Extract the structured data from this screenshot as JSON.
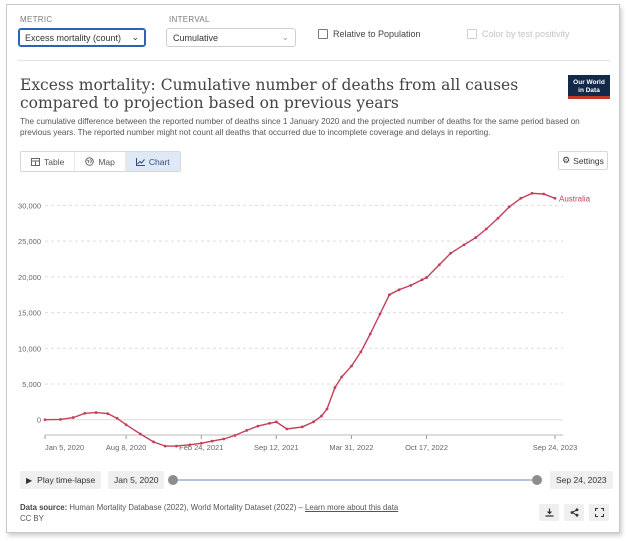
{
  "controls": {
    "metric": {
      "label": "METRIC",
      "value": "Excess mortality (count)"
    },
    "interval": {
      "label": "INTERVAL",
      "value": "Cumulative"
    },
    "relative_to_population": {
      "label": "Relative to Population",
      "checked": false
    },
    "color_by_test_positivity": {
      "label": "Color by test positivity",
      "checked": false,
      "disabled": true
    }
  },
  "header": {
    "title": "Excess mortality: Cumulative number of deaths from all causes compared to projection based on previous years",
    "subtitle": "The cumulative difference between the reported number of deaths since 1 January 2020 and the projected number of deaths for the same period based on previous years. The reported number might not count all deaths that occurred due to incomplete coverage and delays in reporting.",
    "logo_line1": "Our World",
    "logo_line2": "in Data",
    "logo_colors": {
      "background": "#12294a",
      "accent": "#c0392b"
    }
  },
  "tabs": [
    {
      "label": "Table",
      "icon": "table-icon",
      "active": false
    },
    {
      "label": "Map",
      "icon": "globe-icon",
      "active": false
    },
    {
      "label": "Chart",
      "icon": "line-chart-icon",
      "active": true
    }
  ],
  "settings_label": "Settings",
  "chart_data": {
    "type": "line",
    "title": "",
    "xlabel": "",
    "ylabel": "",
    "ylim": [
      -2000,
      33000
    ],
    "y_ticks": [
      "0",
      "5,000",
      "10,000",
      "15,000",
      "20,000",
      "25,000",
      "30,000"
    ],
    "y_tick_values": [
      0,
      5000,
      10000,
      15000,
      20000,
      25000,
      30000
    ],
    "x_tick_labels": [
      "Jan 5, 2020",
      "Aug 8, 2020",
      "Feb 24, 2021",
      "Sep 12, 2021",
      "Mar 31, 2022",
      "Oct 17, 2022",
      "Sep 24, 2023"
    ],
    "x_tick_values": [
      "2020-01-05",
      "2020-08-08",
      "2021-02-24",
      "2021-09-12",
      "2022-03-31",
      "2022-10-17",
      "2023-09-24"
    ],
    "grid": true,
    "color": "#c2405a",
    "series": [
      {
        "name": "Australia",
        "points": [
          [
            "2020-01-05",
            0
          ],
          [
            "2020-02-15",
            50
          ],
          [
            "2020-03-20",
            300
          ],
          [
            "2020-04-20",
            900
          ],
          [
            "2020-05-20",
            1000
          ],
          [
            "2020-06-20",
            850
          ],
          [
            "2020-07-15",
            200
          ],
          [
            "2020-08-08",
            -700
          ],
          [
            "2020-09-15",
            -2000
          ],
          [
            "2020-10-20",
            -3100
          ],
          [
            "2020-11-20",
            -3700
          ],
          [
            "2020-12-20",
            -3700
          ],
          [
            "2021-01-25",
            -3500
          ],
          [
            "2021-02-24",
            -3300
          ],
          [
            "2021-03-25",
            -3000
          ],
          [
            "2021-04-25",
            -2700
          ],
          [
            "2021-05-25",
            -2200
          ],
          [
            "2021-06-25",
            -1500
          ],
          [
            "2021-07-25",
            -900
          ],
          [
            "2021-08-25",
            -500
          ],
          [
            "2021-09-12",
            -300
          ],
          [
            "2021-10-10",
            -1300
          ],
          [
            "2021-11-20",
            -1000
          ],
          [
            "2021-12-20",
            -300
          ],
          [
            "2022-01-10",
            500
          ],
          [
            "2022-01-25",
            1500
          ],
          [
            "2022-02-15",
            4500
          ],
          [
            "2022-03-05",
            6000
          ],
          [
            "2022-03-31",
            7500
          ],
          [
            "2022-04-25",
            9500
          ],
          [
            "2022-05-20",
            12000
          ],
          [
            "2022-06-15",
            14800
          ],
          [
            "2022-07-10",
            17500
          ],
          [
            "2022-08-05",
            18200
          ],
          [
            "2022-09-05",
            18800
          ],
          [
            "2022-10-05",
            19600
          ],
          [
            "2022-10-17",
            19900
          ],
          [
            "2022-11-20",
            21700
          ],
          [
            "2022-12-20",
            23300
          ],
          [
            "2023-01-25",
            24500
          ],
          [
            "2023-02-25",
            25500
          ],
          [
            "2023-03-25",
            26700
          ],
          [
            "2023-04-25",
            28200
          ],
          [
            "2023-05-25",
            29800
          ],
          [
            "2023-06-25",
            31000
          ],
          [
            "2023-07-25",
            31700
          ],
          [
            "2023-08-25",
            31600
          ],
          [
            "2023-09-24",
            31000
          ]
        ]
      }
    ]
  },
  "timeline": {
    "play_label": "Play time-lapse",
    "start_label": "Jan 5, 2020",
    "end_label": "Sep 24, 2023",
    "start_fraction": 0,
    "end_fraction": 1
  },
  "footer": {
    "source_label": "Data source:",
    "source_text": "Human Mortality Database (2022), World Mortality Dataset (2022) –",
    "learn_more": "Learn more about this data",
    "license": "CC BY",
    "actions": [
      "download-icon",
      "share-icon",
      "fullscreen-icon"
    ]
  }
}
